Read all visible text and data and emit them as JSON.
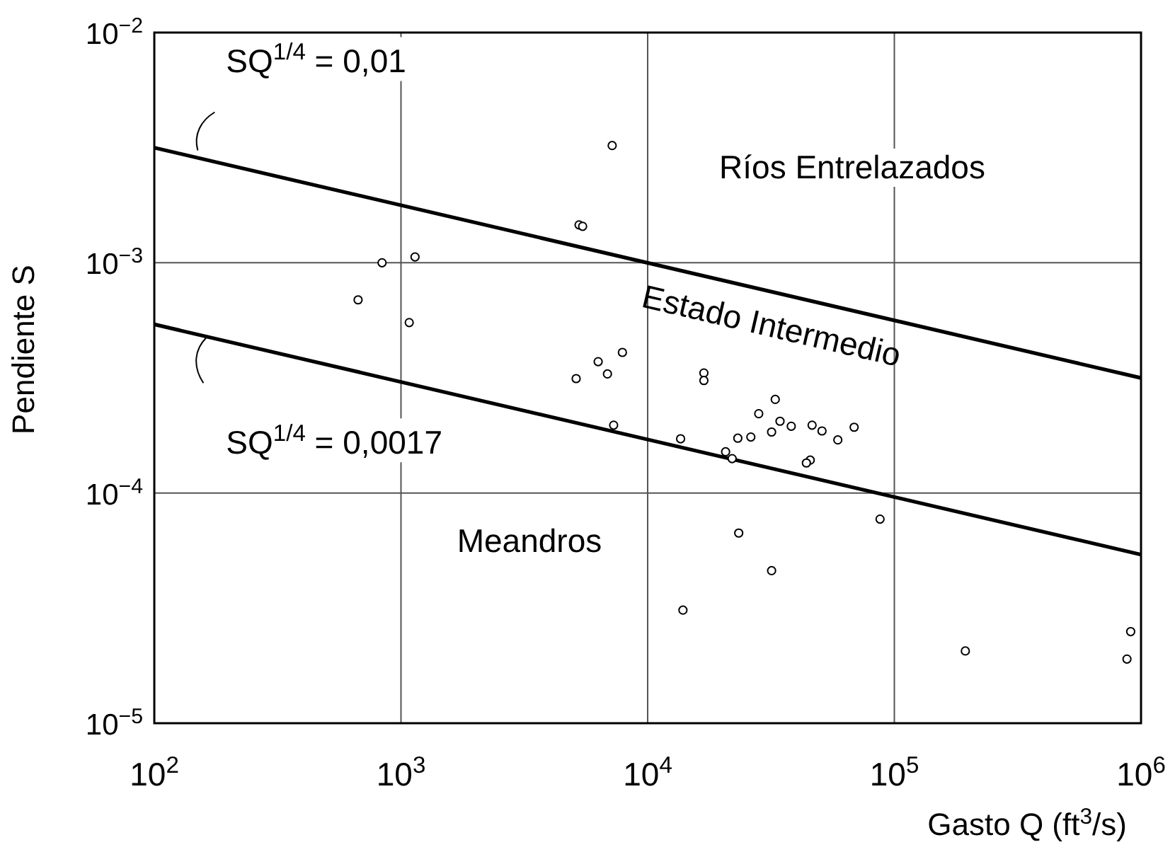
{
  "chart_data": {
    "type": "scatter",
    "xlabel": "Gasto Q (ft$^{3}$/s)",
    "ylabel": "Pendiente  S",
    "log": "xy",
    "grid": true,
    "xlim": [
      100,
      1000000
    ],
    "ylim": [
      1e-05,
      0.01
    ],
    "xticks": [
      {
        "value": 100,
        "label": "10$^{2}$"
      },
      {
        "value": 1000,
        "label": "10$^{3}$"
      },
      {
        "value": 10000,
        "label": "10$^{4}$"
      },
      {
        "value": 100000,
        "label": "10$^{5}$"
      },
      {
        "value": 1000000,
        "label": "10$^{6}$"
      }
    ],
    "yticks": [
      {
        "value": 1e-05,
        "label": "10$^{−5}$"
      },
      {
        "value": 0.0001,
        "label": "10$^{−4}$"
      },
      {
        "value": 0.001,
        "label": "10$^{−3}$"
      },
      {
        "value": 0.01,
        "label": "10$^{−2}$"
      }
    ],
    "series": [
      {
        "type": "line",
        "color": "#000000",
        "x": [
          100,
          1000000
        ],
        "values": [
          0.00316,
          0.000316
        ]
      },
      {
        "type": "line",
        "color": "#000000",
        "x": [
          100,
          1000000
        ],
        "values": [
          0.00054,
          5.4e-05
        ]
      },
      {
        "color": "#000000",
        "marker": "circle",
        "x": [
          670,
          838,
          1140,
          1080,
          7180,
          5270,
          5450,
          5130,
          6300,
          6870,
          7900,
          7280,
          16900,
          16900,
          13600,
          28200,
          32900,
          34400,
          38200,
          31800,
          26200,
          23200,
          20700,
          22000,
          46400,
          50900,
          59000,
          68700,
          45600,
          44000,
          87500,
          23400,
          31800,
          13900,
          194000,
          908000,
          877000
        ],
        "values": [
          0.00069,
          0.001,
          0.00106,
          0.00055,
          0.00323,
          0.00146,
          0.00144,
          0.000314,
          0.000372,
          0.000329,
          0.000408,
          0.000197,
          0.000332,
          0.000308,
          0.000172,
          0.000221,
          0.000255,
          0.000205,
          0.000195,
          0.000184,
          0.000175,
          0.000173,
          0.000151,
          0.000141,
          0.000197,
          0.000186,
          0.00017,
          0.000193,
          0.000139,
          0.000135,
          7.7e-05,
          6.7e-05,
          4.6e-05,
          3.1e-05,
          2.06e-05,
          2.5e-05,
          1.9e-05
        ]
      }
    ],
    "annotations": [
      {
        "text": "SQ$^{1/4}$ = 0,01",
        "x": 150,
        "y": 0.00295
      },
      {
        "text": "SQ$^{1/4}$ = 0,0017",
        "x": 150,
        "y": 0.0005
      },
      "Ríos Entrelazados",
      "Estado Intermedio",
      "Meandros"
    ]
  }
}
